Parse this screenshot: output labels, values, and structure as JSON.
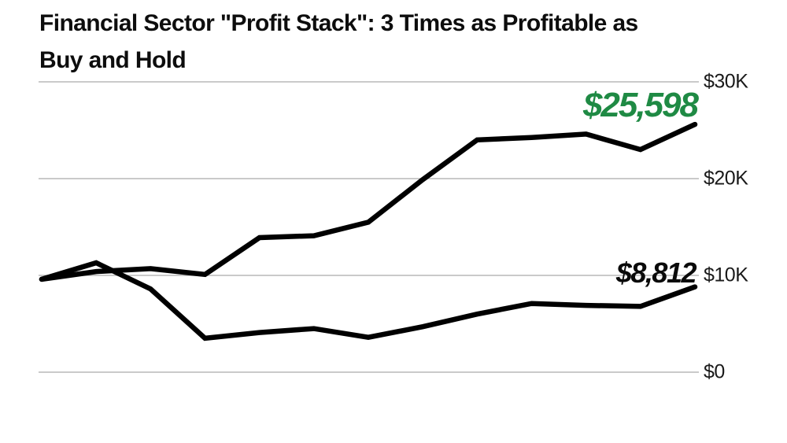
{
  "header": {
    "line1": "Financial Sector \"Profit Stack\": 3 Times as Profitable as",
    "line2": "Buy and Hold"
  },
  "colors": {
    "line": "#000000",
    "grid": "#b9b9b9",
    "annotation_green": "#1f8a44",
    "annotation_black": "#0a0a0a",
    "title_text": "#0d0d0d",
    "axis_label_text": "#1a1a1a"
  },
  "chart_data": {
    "type": "line",
    "title": "Financial Sector \"Profit Stack\": 3 Times as Profitable as Buy and Hold",
    "xlabel": "",
    "ylabel": "",
    "x_axis": {
      "tick_labels": [],
      "num_points": 13
    },
    "y_axis": {
      "min": 0,
      "max": 30000,
      "ticks": [
        {
          "label": "$30K",
          "value": 30000
        },
        {
          "label": "$20K",
          "value": 20000
        },
        {
          "label": "$10K",
          "value": 10000
        },
        {
          "label": "$0",
          "value": 0
        }
      ]
    },
    "grid": "horizontal",
    "legend": "none",
    "annotations": [
      {
        "text": "$25,598",
        "series": "Profit Stack",
        "color": "#1f8a44"
      },
      {
        "text": "$8,812",
        "series": "Buy and Hold",
        "color": "#0a0a0a"
      }
    ],
    "series": [
      {
        "name": "Profit Stack",
        "end_label": "$25,598",
        "values": [
          9600,
          10400,
          10700,
          10100,
          13900,
          14100,
          15500,
          19900,
          24000,
          24250,
          24600,
          23000,
          25598
        ]
      },
      {
        "name": "Buy and Hold",
        "end_label": "$8,812",
        "values": [
          9600,
          11300,
          8600,
          3500,
          4100,
          4500,
          3600,
          4700,
          6000,
          7100,
          6900,
          6800,
          8812
        ]
      }
    ]
  }
}
